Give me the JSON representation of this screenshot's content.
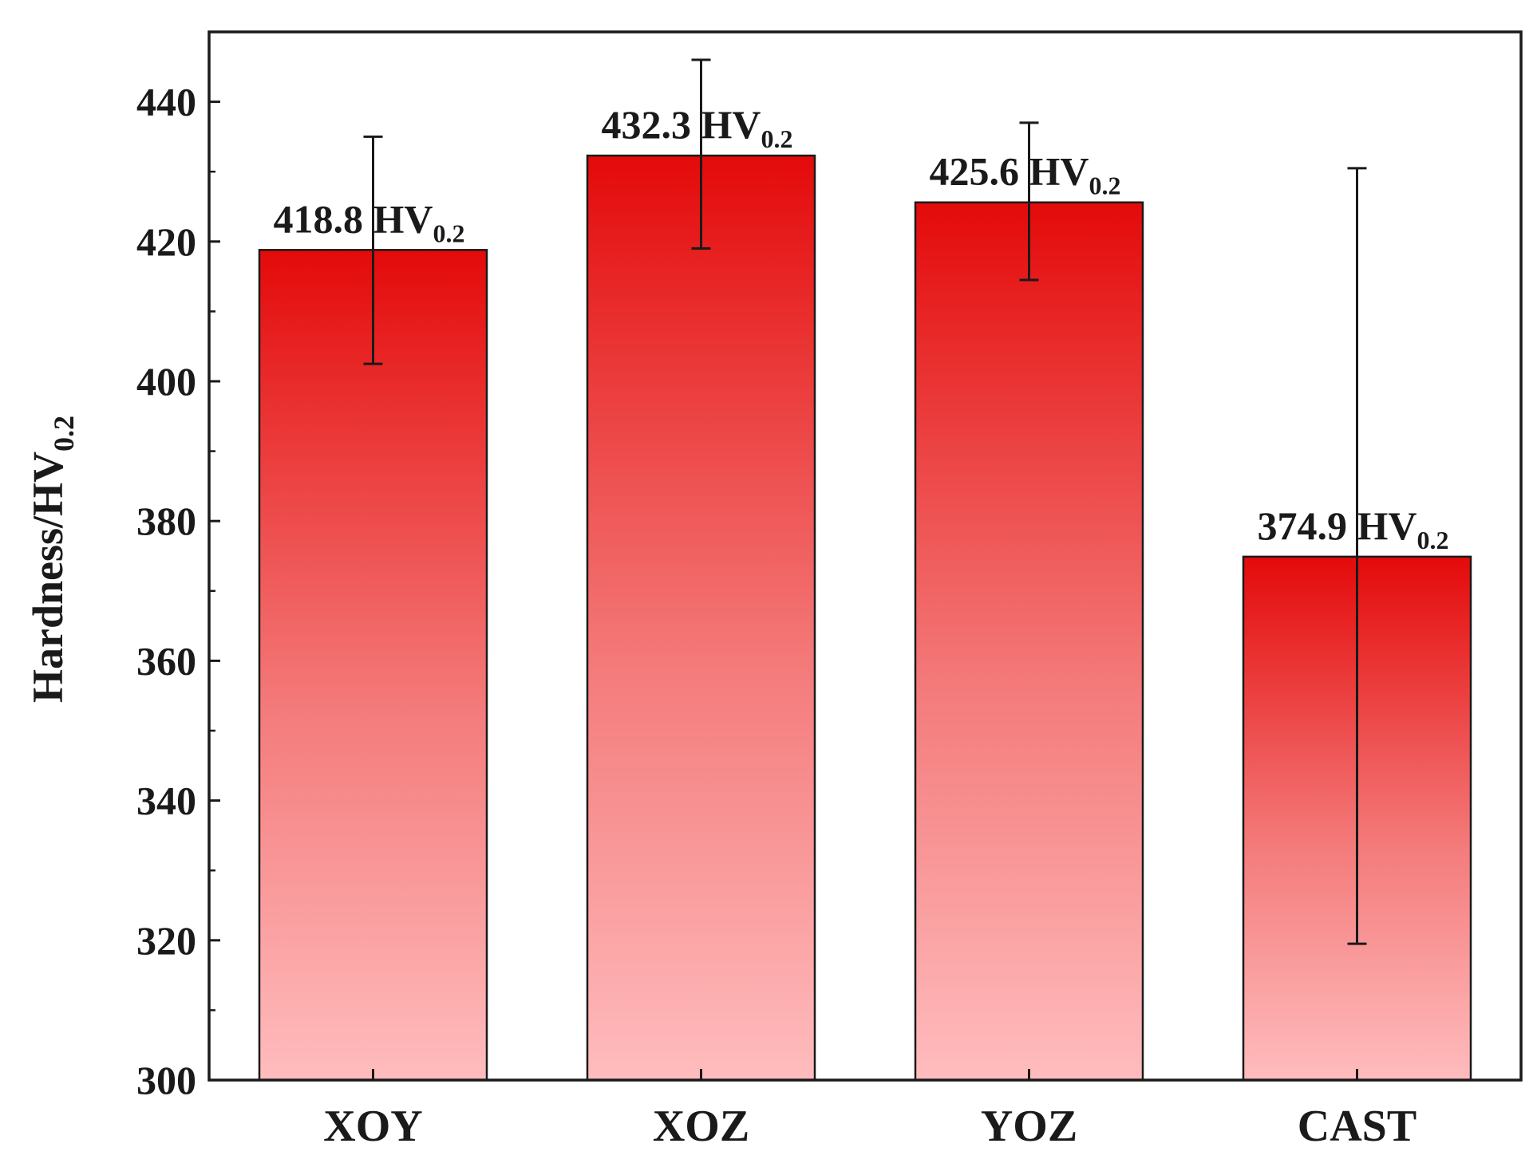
{
  "chart_data": {
    "type": "bar",
    "title": "",
    "xlabel": "",
    "ylabel": {
      "main": "Hardness/HV",
      "sub": "0.2"
    },
    "ylim": [
      300,
      450
    ],
    "yticks": [
      300,
      320,
      340,
      360,
      380,
      400,
      420,
      440
    ],
    "categories": [
      "XOY",
      "XOZ",
      "YOZ",
      "CAST"
    ],
    "values": [
      418.8,
      432.3,
      425.6,
      374.9
    ],
    "errors_upper": [
      435,
      446,
      437,
      430.5
    ],
    "errors_lower": [
      402.5,
      419,
      414.5,
      319.5
    ],
    "labels": [
      {
        "value": "418.8",
        "unit": "HV",
        "sub": "0.2"
      },
      {
        "value": "432.3",
        "unit": "HV",
        "sub": "0.2"
      },
      {
        "value": "425.6",
        "unit": "HV",
        "sub": "0.2"
      },
      {
        "value": "374.9",
        "unit": "HV",
        "sub": "0.2"
      }
    ],
    "grid": false,
    "legend": "none"
  },
  "colors": {
    "bar_top": "#e40a0a",
    "bar_bottom": "#ffbcbe",
    "axis": "#1a1a1a"
  }
}
